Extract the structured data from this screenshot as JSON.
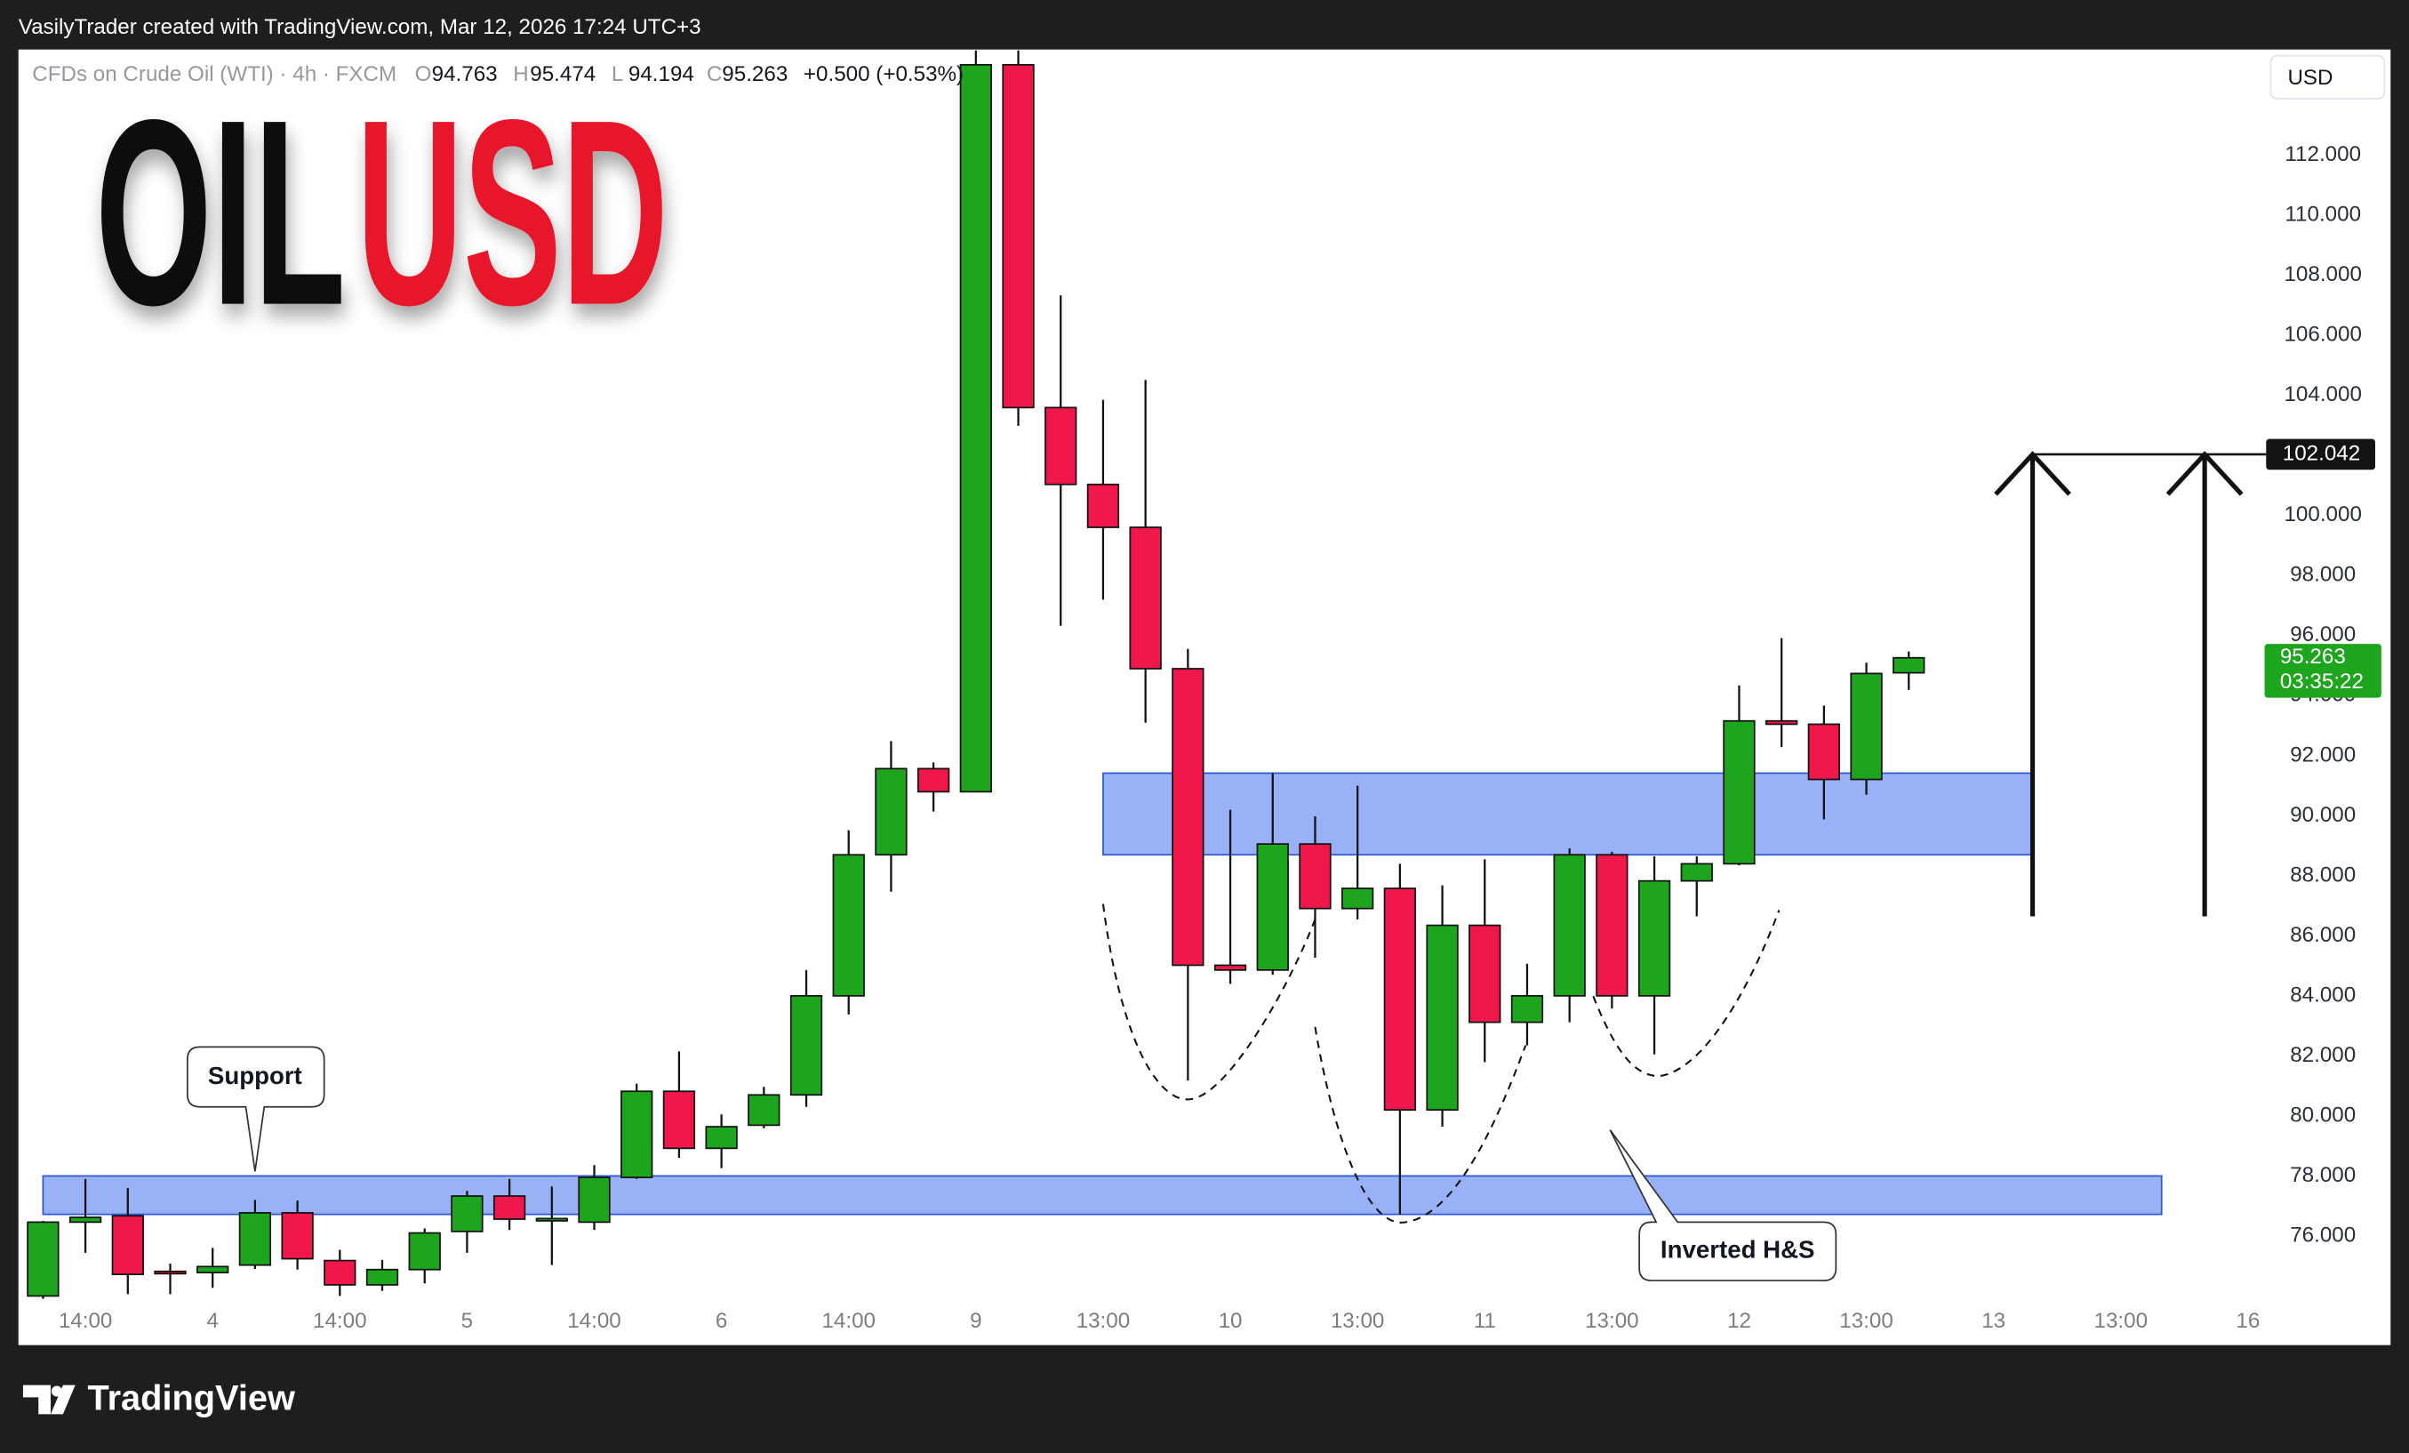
{
  "header": {
    "attribution": "VasilyTrader created with TradingView.com, Mar 12, 2026 17:24 UTC+3"
  },
  "chart_data": {
    "type": "candlestick",
    "symbol": "CFDs on Crude Oil (WTI) · 4h · FXCM",
    "ohlc_labels": [
      "O",
      "H",
      "L",
      "C"
    ],
    "change": "+0.500 (+0.53%)",
    "title_parts": [
      "OIL",
      "USD"
    ],
    "title_colors": [
      "#111111",
      "#e8192c"
    ],
    "currency": "USD",
    "categories": [
      null,
      "14:00",
      null,
      null,
      "4",
      null,
      null,
      "14:00",
      null,
      null,
      "5",
      null,
      null,
      "14:00",
      null,
      null,
      "6",
      null,
      null,
      "14:00",
      null,
      null,
      "9",
      null,
      null,
      "13:00",
      null,
      null,
      "10",
      null,
      null,
      "13:00",
      null,
      null,
      "11",
      null,
      null,
      "13:00",
      null,
      null,
      "12",
      null,
      null,
      "13:00",
      null,
      null,
      "13",
      null,
      null,
      "13:00",
      null,
      null,
      "16"
    ],
    "open": [
      74.0,
      76.46,
      76.67,
      74.82,
      74.78,
      75.03,
      76.77,
      75.18,
      74.37,
      74.88,
      76.15,
      77.33,
      76.52,
      76.46,
      77.95,
      80.82,
      78.92,
      79.69,
      80.7,
      84.0,
      88.7,
      91.57,
      90.8,
      115.02,
      103.6,
      101.04,
      99.61,
      94.9,
      85.02,
      84.86,
      89.06,
      86.91,
      87.58,
      80.2,
      86.35,
      83.12,
      84.0,
      88.7,
      84.0,
      87.83,
      88.4,
      93.16,
      93.05,
      91.21,
      94.763,
      null,
      null,
      null,
      null,
      null,
      null,
      null,
      null
    ],
    "high": [
      76.5,
      77.9,
      77.6,
      75.08,
      75.6,
      77.2,
      77.18,
      75.54,
      75.2,
      76.25,
      77.5,
      77.9,
      77.65,
      78.36,
      81.07,
      82.15,
      80.05,
      80.97,
      84.86,
      89.52,
      92.49,
      91.78,
      115.5,
      115.5,
      107.34,
      103.86,
      104.52,
      95.56,
      90.2,
      91.42,
      89.98,
      91.0,
      88.4,
      87.68,
      88.55,
      85.07,
      88.91,
      88.8,
      88.65,
      88.65,
      94.34,
      95.92,
      93.67,
      95.1,
      95.474,
      null,
      null,
      null,
      null,
      null,
      null,
      null,
      null
    ],
    "low": [
      73.9,
      75.44,
      74.06,
      74.06,
      74.27,
      74.9,
      74.88,
      74.0,
      74.17,
      74.42,
      75.44,
      76.2,
      75.03,
      76.2,
      77.9,
      78.6,
      78.26,
      79.59,
      80.3,
      83.38,
      87.47,
      90.14,
      90.8,
      102.99,
      96.33,
      97.2,
      93.1,
      81.18,
      84.4,
      84.7,
      85.27,
      86.55,
      76.72,
      79.64,
      81.79,
      82.35,
      83.12,
      83.58,
      82.05,
      86.65,
      88.35,
      92.29,
      89.88,
      90.7,
      94.194,
      null,
      null,
      null,
      null,
      null,
      null,
      null,
      null
    ],
    "close": [
      76.46,
      76.62,
      74.72,
      74.77,
      74.98,
      76.77,
      75.24,
      74.37,
      74.88,
      76.1,
      77.33,
      76.56,
      76.58,
      77.95,
      80.82,
      78.92,
      79.64,
      80.7,
      84.0,
      88.7,
      91.57,
      90.8,
      115.02,
      103.6,
      101.04,
      99.61,
      94.9,
      85.02,
      84.86,
      89.06,
      86.91,
      87.58,
      80.2,
      86.35,
      83.12,
      84.0,
      88.7,
      84.0,
      87.83,
      88.4,
      93.16,
      93.05,
      91.21,
      94.74,
      95.263,
      null,
      null,
      null,
      null,
      null,
      null,
      null,
      null
    ],
    "up_color": "#1ea51e",
    "down_color": "#f0174a",
    "ylim": [
      73.9,
      115.53
    ],
    "yticks": [
      {
        "value": 76,
        "label": "76.000"
      },
      {
        "value": 78,
        "label": "78.000"
      },
      {
        "value": 80,
        "label": "80.000"
      },
      {
        "value": 82,
        "label": "82.000"
      },
      {
        "value": 84,
        "label": "84.000"
      },
      {
        "value": 86,
        "label": "86.000"
      },
      {
        "value": 88,
        "label": "88.000"
      },
      {
        "value": 90,
        "label": "90.000"
      },
      {
        "value": 92,
        "label": "92.000"
      },
      {
        "value": 94,
        "label": "94.000"
      },
      {
        "value": 96,
        "label": "96.000"
      },
      {
        "value": 98,
        "label": "98.000"
      },
      {
        "value": 100,
        "label": "100.000"
      },
      {
        "value": 102,
        "label": "102.000"
      },
      {
        "value": 104,
        "label": "104.000"
      },
      {
        "value": 106,
        "label": "106.000"
      },
      {
        "value": 108,
        "label": "108.000"
      },
      {
        "value": 110,
        "label": "110.000"
      },
      {
        "value": 112,
        "label": "112.000"
      }
    ],
    "grid": false,
    "target": 102.042,
    "countdown": "03:35:22",
    "zones": [
      {
        "range": [
          88.7,
          91.42
        ]
      },
      {
        "range": [
          76.72,
          78.0
        ]
      }
    ],
    "zone_color": "#8eaaf6",
    "annotations": [
      {
        "text": "Support"
      },
      {
        "text": "Inverted H&S"
      }
    ]
  },
  "footer": {
    "brand": "TradingView"
  }
}
